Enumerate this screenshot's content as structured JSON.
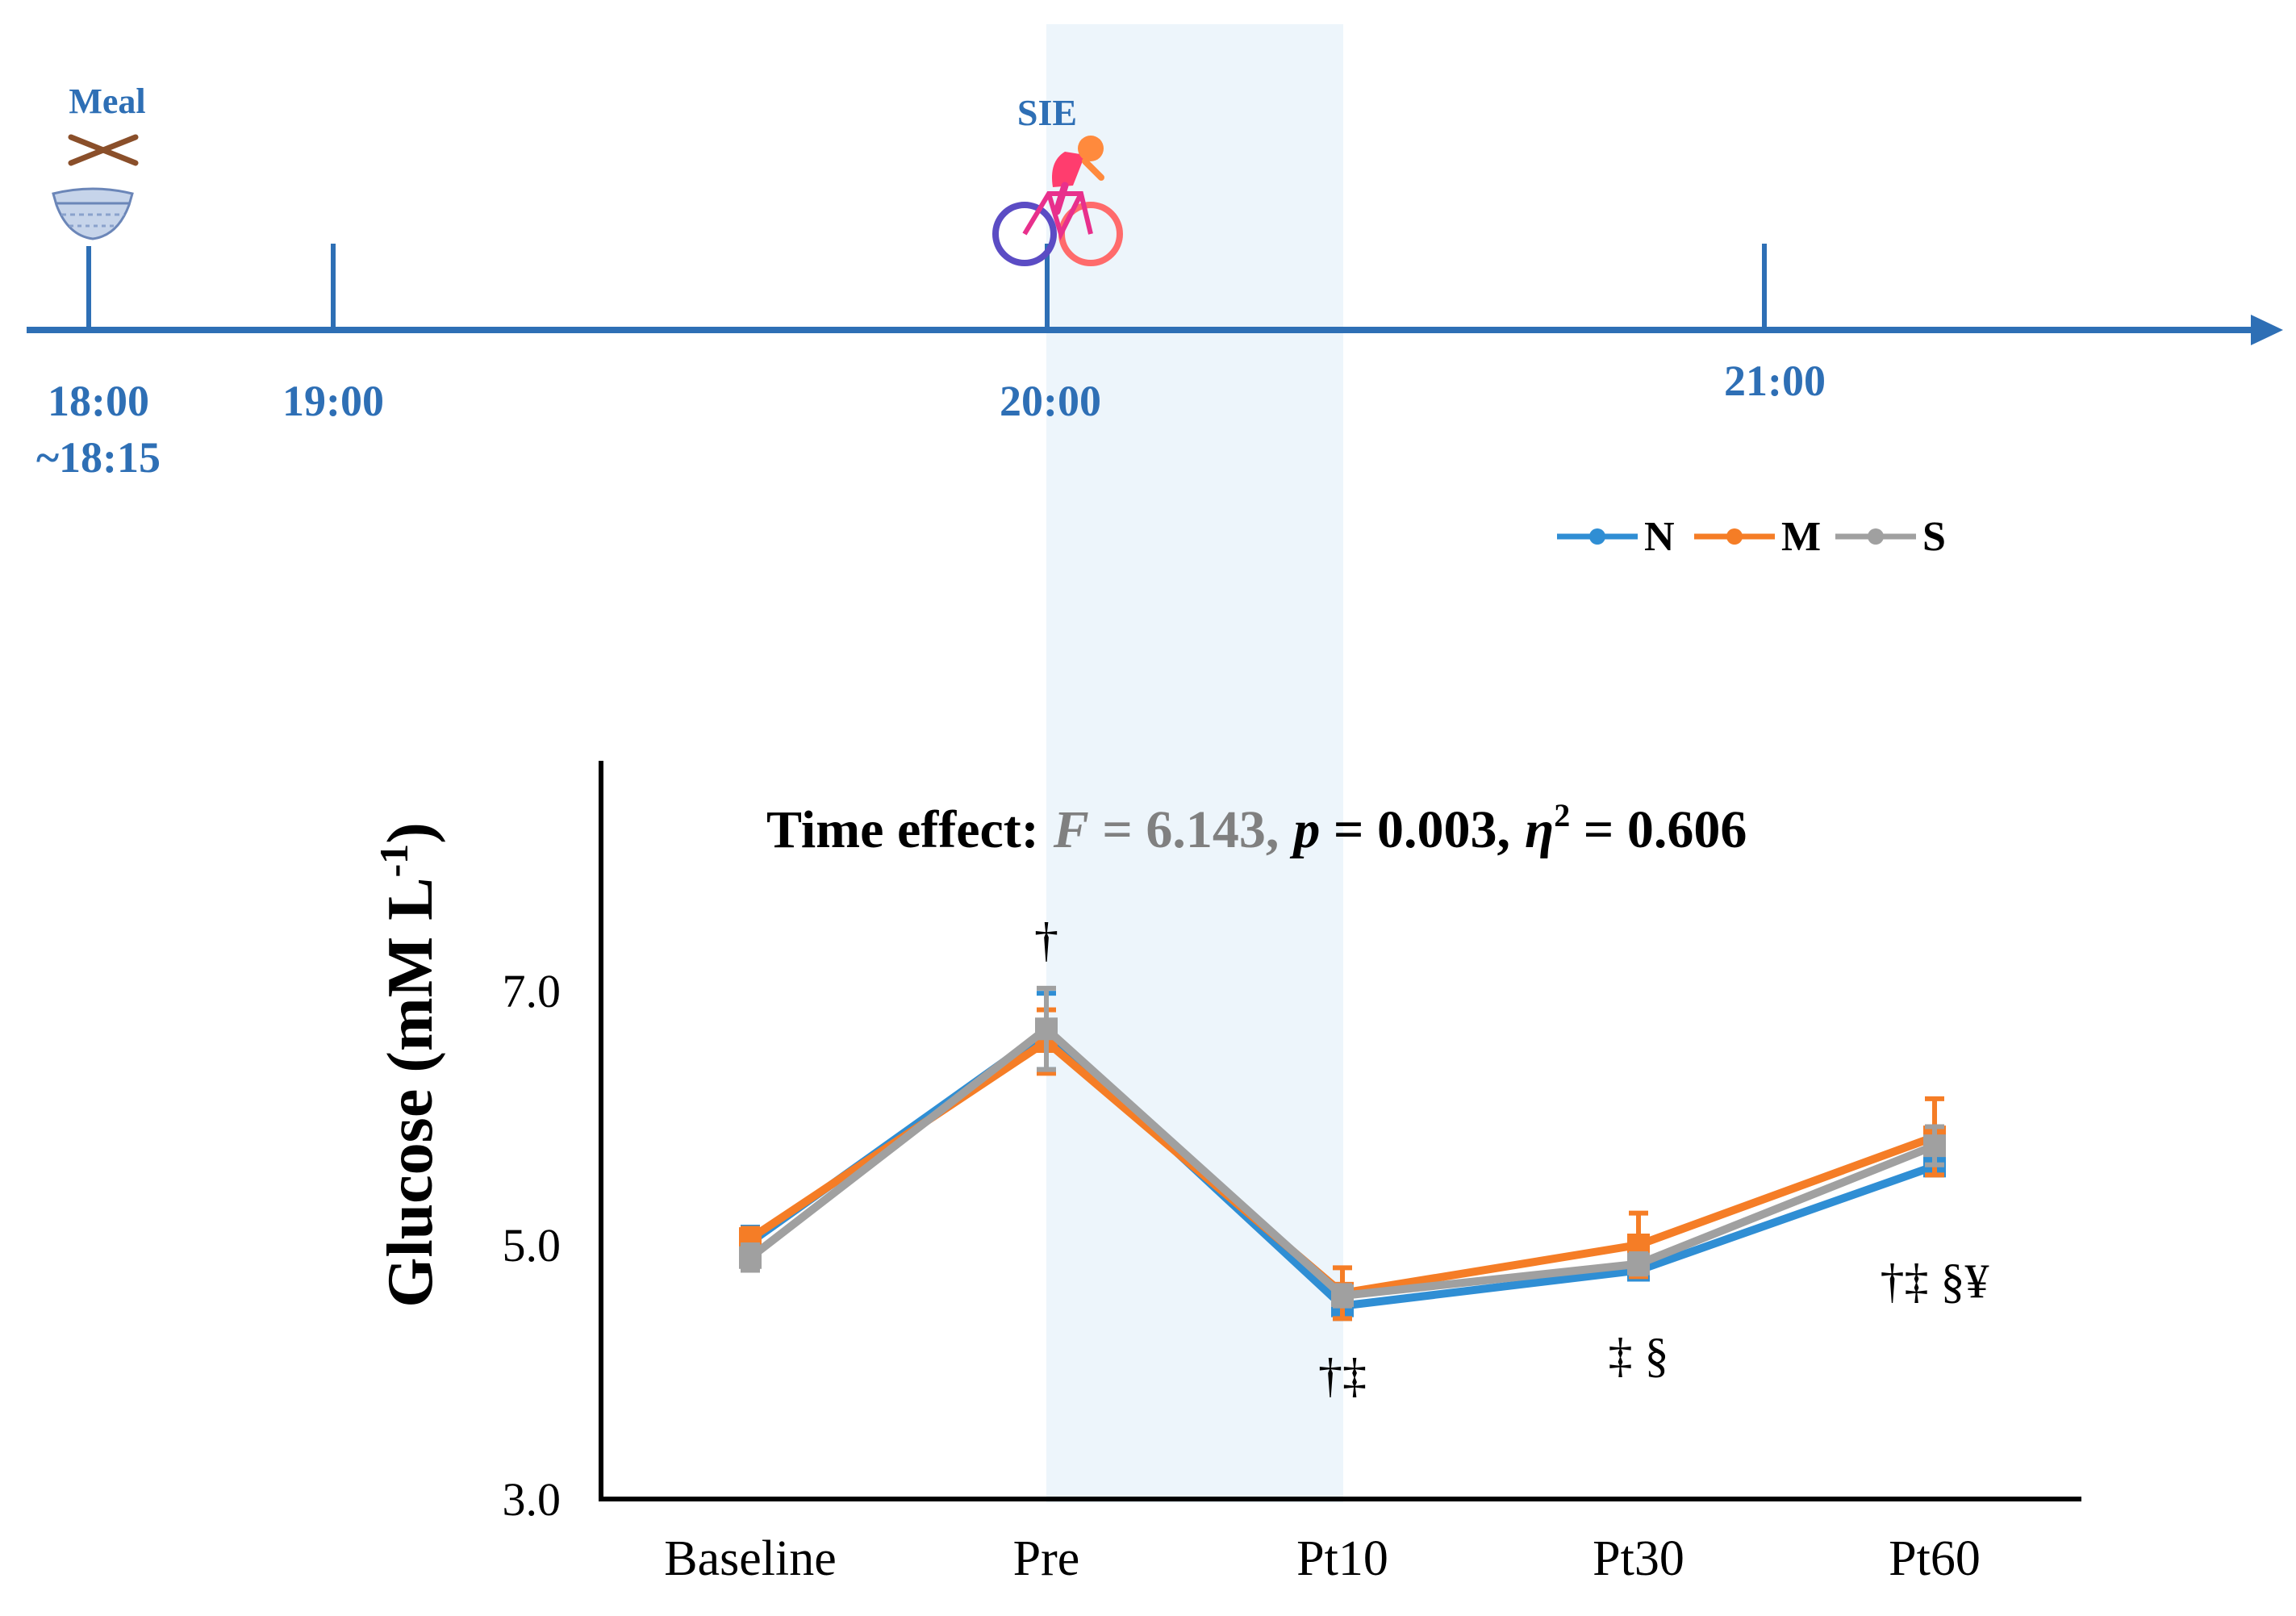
{
  "timeline": {
    "events": [
      {
        "label": "Meal",
        "icon": "meal-bowl-chopsticks-icon"
      },
      {
        "label": "SIE",
        "icon": "cyclist-icon"
      }
    ],
    "times": [
      "18:00",
      "~18:15",
      "19:00",
      "20:00",
      "21:00"
    ],
    "color": "#2e6fb5"
  },
  "chart_data": {
    "type": "line",
    "title": "Time effect: F = 6.143, p = 0.003, η² = 0.606",
    "title_parts": {
      "lead": "Time effect:",
      "F_symbol": "F",
      "F_value": " = 6.143,",
      "p_symbol": "p",
      "p_value": " = 0.003,",
      "eta_symbol": "η",
      "eta_sup": "2",
      "eta_value": " = 0.606"
    },
    "ylabel": "Glucose (mM L",
    "ylabel_sup": "-1",
    "ylabel_close": ")",
    "ylim": [
      3.0,
      9.0
    ],
    "yticks": [
      "3.0",
      "5.0",
      "7.0"
    ],
    "categories": [
      "Baseline",
      "Pre",
      "Pt10",
      "Pt30",
      "Pt60"
    ],
    "shaded_region": [
      "Pre",
      "Pt10"
    ],
    "series": [
      {
        "name": "N",
        "color": "#2f8ed4",
        "values": [
          5.02,
          6.68,
          4.52,
          4.8,
          5.62
        ],
        "errors": [
          0.12,
          0.3,
          0.1,
          0.06,
          0.07
        ]
      },
      {
        "name": "M",
        "color": "#f57d26",
        "values": [
          5.05,
          6.6,
          4.62,
          5.0,
          5.85
        ],
        "errors": [
          0.08,
          0.25,
          0.2,
          0.25,
          0.3
        ]
      },
      {
        "name": "S",
        "color": "#a0a0a0",
        "values": [
          4.9,
          6.7,
          4.6,
          4.85,
          5.78
        ],
        "errors": [
          0.1,
          0.32,
          0.08,
          0.08,
          0.15
        ]
      }
    ],
    "annotations": [
      {
        "category": "Pre",
        "text": "†"
      },
      {
        "category": "Pt10",
        "text": "†‡"
      },
      {
        "category": "Pt30",
        "text": "‡ §"
      },
      {
        "category": "Pt60",
        "text": "†‡ §¥"
      }
    ]
  }
}
